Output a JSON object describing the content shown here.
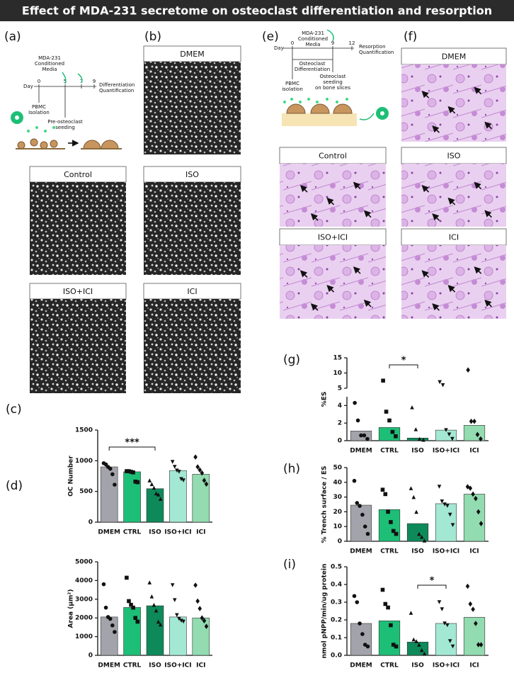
{
  "title": "Effect of MDA-231 secretome on osteoclast differentiation and resorption",
  "panel_labels": [
    "(a)",
    "(b)",
    "(c)",
    "(d)",
    "(e)",
    "(f)",
    "(g)",
    "(h)",
    "(i)"
  ],
  "micrographs": [
    "DMEM",
    "Control",
    "ISO",
    "ISO+ICI",
    "ICI"
  ],
  "resorption_images": [
    "DMEM",
    "Control",
    "ISO",
    "ISO+ICI",
    "ICI"
  ],
  "timeline_a": {
    "day": "Day",
    "days": [
      "0",
      "5",
      "7",
      "9"
    ],
    "media": [
      "MDA-231",
      "Conditioned",
      "Media"
    ],
    "end": [
      "Differentiation",
      "Quantification"
    ],
    "isolation": [
      "PBMC",
      "Isolation"
    ],
    "seeding": [
      "Pre-osteoclast",
      "seeding"
    ]
  },
  "timeline_e": {
    "day": "Day",
    "days": [
      "0",
      "9",
      "12"
    ],
    "media": [
      "MDA-231",
      "Conditioned",
      "Media"
    ],
    "end": [
      "Resorption",
      "Quantification"
    ],
    "differentiation": [
      "Osteoclast",
      "Differentiation"
    ],
    "isolation": [
      "PBMC",
      "isolation"
    ],
    "seeding": [
      "Osteoclast",
      "seeding",
      "on bone slices"
    ]
  },
  "chart_data": [
    {
      "type": "bar",
      "ylabel": "OC Number",
      "categories": [
        "DMEM",
        "CTRL",
        "ISO",
        "ISO+ICI",
        "ICI"
      ],
      "values": [
        900,
        820,
        545,
        840,
        780
      ],
      "colors": [
        "#a3a3ab",
        "#1dbf77",
        "#0e8a5a",
        "#a3e8d3",
        "#93dbb0"
      ],
      "markers": [
        "circle",
        "square",
        "triangle-up",
        "triangle-down",
        "diamond"
      ],
      "points": [
        [
          960,
          940,
          900,
          870,
          780,
          610
        ],
        [
          830,
          830,
          820,
          810,
          660,
          650
        ],
        [
          680,
          620,
          560,
          470,
          450,
          380
        ],
        [
          980,
          900,
          840,
          820,
          700,
          680
        ],
        [
          1060,
          900,
          850,
          800,
          680,
          620
        ]
      ],
      "ylim": [
        0,
        1500
      ],
      "yticks": [
        0,
        500,
        1000,
        1500
      ],
      "annotation": {
        "from": 0,
        "to": 2,
        "label": "***"
      }
    },
    {
      "type": "bar",
      "ylabel": "Area (μm²)",
      "categories": [
        "DMEM",
        "CTRL",
        "ISO",
        "ISO+ICI",
        "ICI"
      ],
      "values": [
        2050,
        2560,
        2650,
        2050,
        2000
      ],
      "colors": [
        "#a3a3ab",
        "#1dbf77",
        "#0e8a5a",
        "#a3e8d3",
        "#93dbb0"
      ],
      "markers": [
        "circle",
        "square",
        "triangle-up",
        "triangle-down",
        "diamond"
      ],
      "points": [
        [
          3800,
          2550,
          2050,
          1950,
          1600,
          1250
        ],
        [
          4150,
          2900,
          2700,
          2550,
          2000,
          1800
        ],
        [
          3900,
          3150,
          2700,
          2400,
          1800,
          1650
        ],
        [
          3750,
          2950,
          2150,
          1950,
          1850,
          1800
        ],
        [
          3750,
          2900,
          2500,
          2000,
          1850,
          1550
        ]
      ],
      "ylim": [
        0,
        5000
      ],
      "yticks": [
        0,
        1000,
        2000,
        3000,
        4000,
        5000
      ]
    },
    {
      "type": "bar",
      "ylabel": "%ES",
      "categories": [
        "DMEM",
        "CTRL",
        "ISO",
        "ISO+ICI",
        "ICI"
      ],
      "values": [
        1.1,
        1.5,
        0.3,
        1.2,
        1.75
      ],
      "colors": [
        "#a3a3ab",
        "#1dbf77",
        "#0e8a5a",
        "#a3e8d3",
        "#93dbb0"
      ],
      "markers": [
        "circle",
        "square",
        "triangle-up",
        "triangle-down",
        "diamond"
      ],
      "points": [
        [
          4.3,
          2.3,
          0.6,
          0.6,
          0.2
        ],
        [
          7.5,
          3.3,
          2.3,
          1.0,
          0.5
        ],
        [
          3.8,
          1.3,
          0.2,
          0.1
        ],
        [
          7,
          6,
          1.2,
          0.7,
          0.2
        ],
        [
          11,
          2.2,
          2.2,
          0.7,
          0.2
        ]
      ],
      "ylim": [
        0,
        15
      ],
      "ybreak": 5,
      "yticks": [
        0,
        2,
        4,
        5,
        10,
        15
      ],
      "annotation": {
        "from": 1,
        "to": 2,
        "label": "*"
      }
    },
    {
      "type": "bar",
      "ylabel": "% Trench surface /  ES",
      "categories": [
        "DMEM",
        "CTRL",
        "ISO",
        "ISO+ICI",
        "ICI"
      ],
      "values": [
        24.5,
        21.5,
        12,
        25.5,
        32
      ],
      "colors": [
        "#a3a3ab",
        "#1dbf77",
        "#0e8a5a",
        "#a3e8d3",
        "#93dbb0"
      ],
      "markers": [
        "circle",
        "square",
        "triangle-up",
        "triangle-down",
        "diamond"
      ],
      "points": [
        [
          41,
          26,
          24,
          18,
          10,
          5
        ],
        [
          35,
          32,
          20,
          13,
          7,
          5
        ],
        [
          36,
          30,
          20,
          5,
          3,
          0.5
        ],
        [
          37,
          27,
          25,
          24,
          18,
          11
        ],
        [
          37,
          36,
          32,
          29,
          20,
          12
        ]
      ],
      "ylim": [
        0,
        50
      ],
      "yticks": [
        0,
        10,
        20,
        30,
        40,
        50
      ]
    },
    {
      "type": "bar",
      "ylabel": "nmol pNPP/min/ug protein",
      "categories": [
        "DMEM",
        "CTRL",
        "ISO",
        "ISO+ICI",
        "ICI"
      ],
      "values": [
        0.18,
        0.195,
        0.075,
        0.18,
        0.215
      ],
      "colors": [
        "#a3a3ab",
        "#1dbf77",
        "#0e8a5a",
        "#a3e8d3",
        "#93dbb0"
      ],
      "markers": [
        "circle",
        "square",
        "triangle-up",
        "triangle-down",
        "diamond"
      ],
      "points": [
        [
          0.335,
          0.3,
          0.18,
          0.12,
          0.06,
          0.05
        ],
        [
          0.37,
          0.29,
          0.27,
          0.17,
          0.06,
          0.05
        ],
        [
          0.24,
          0.09,
          0.08,
          0.06,
          0.03,
          0.01
        ],
        [
          0.3,
          0.26,
          0.18,
          0.17,
          0.08,
          0.05
        ],
        [
          0.39,
          0.29,
          0.26,
          0.18,
          0.06,
          0.06
        ]
      ],
      "ylim": [
        0,
        0.5
      ],
      "yticks": [
        {
          "value": 0,
          "label": "0.0"
        },
        0.1,
        0.2,
        0.3,
        0.4,
        0.5
      ],
      "annotation": {
        "from": 2,
        "to": 3,
        "label": "*"
      }
    }
  ]
}
